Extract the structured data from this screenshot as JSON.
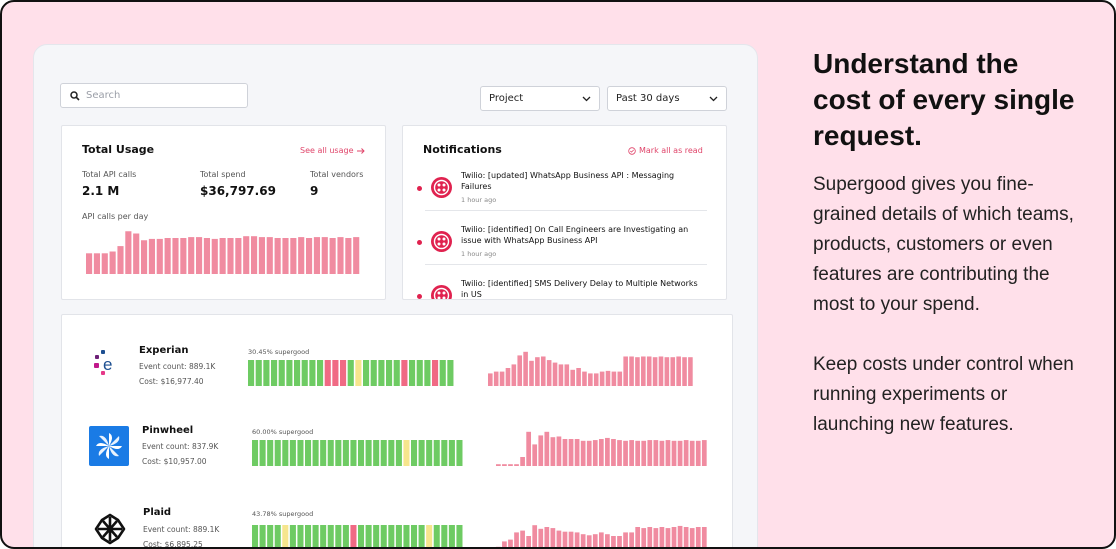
{
  "search": {
    "placeholder": "Search"
  },
  "filters": {
    "project": "Project",
    "range": "Past 30 days"
  },
  "usage": {
    "title": "Total Usage",
    "link": "See all usage",
    "api_calls_label": "Total API calls",
    "api_calls_value": "2.1 M",
    "spend_label": "Total spend",
    "spend_value": "$36,797.69",
    "vendors_label": "Total vendors",
    "vendors_value": "9",
    "chart_label": "API calls per day",
    "bar_color": "#f08ba0",
    "daily_levels": [
      0.46,
      0.46,
      0.46,
      0.5,
      0.62,
      0.95,
      0.9,
      0.75,
      0.78,
      0.78,
      0.8,
      0.8,
      0.8,
      0.82,
      0.82,
      0.8,
      0.78,
      0.8,
      0.8,
      0.8,
      0.84,
      0.84,
      0.82,
      0.82,
      0.8,
      0.8,
      0.8,
      0.82,
      0.8,
      0.82,
      0.82,
      0.8,
      0.82,
      0.8,
      0.82
    ]
  },
  "notifications": {
    "title": "Notifications",
    "mark_read": "Mark all as read",
    "items": [
      {
        "text": "Twilio: [updated] WhatsApp Business API : Messaging Failures",
        "time": "1 hour ago"
      },
      {
        "text": "Twilio: [identified] On Call Engineers are Investigating an issue with WhatsApp Business API",
        "time": "1 hour ago"
      },
      {
        "text": "Twilio: [identified] SMS Delivery Delay to Multiple Networks in US",
        "time": ""
      }
    ]
  },
  "vendors": [
    {
      "name": "Experian",
      "event_count": "Event count: 889.1K",
      "cost": "Cost: $16,977.40",
      "pct": "30.45% supergood",
      "strip": "ggggggggggrrrgygggggrgggrgg",
      "trend": [
        0.35,
        0.4,
        0.4,
        0.5,
        0.6,
        0.85,
        0.95,
        0.7,
        0.8,
        0.82,
        0.72,
        0.65,
        0.6,
        0.6,
        0.45,
        0.5,
        0.4,
        0.35,
        0.35,
        0.4,
        0.42,
        0.4,
        0.4,
        0.82,
        0.82,
        0.8,
        0.82,
        0.82,
        0.8,
        0.82,
        0.8,
        0.8,
        0.82,
        0.8,
        0.8
      ]
    },
    {
      "name": "Pinwheel",
      "event_count": "Event count: 837.9K",
      "cost": "Cost: $10,957.00",
      "pct": "60.00% supergood",
      "strip": "ggggggggggggggggggggyggggggg",
      "trend": [
        0.05,
        0.05,
        0.05,
        0.05,
        0.25,
        0.95,
        0.6,
        0.85,
        0.95,
        0.8,
        0.82,
        0.75,
        0.75,
        0.75,
        0.7,
        0.7,
        0.72,
        0.75,
        0.78,
        0.75,
        0.72,
        0.7,
        0.72,
        0.7,
        0.7,
        0.72,
        0.72,
        0.7,
        0.72,
        0.7,
        0.7,
        0.72,
        0.7,
        0.7,
        0.72
      ]
    },
    {
      "name": "Plaid",
      "event_count": "Event count: 889.1K",
      "cost": "Cost: $6,895.25",
      "pct": "43.78% supergood",
      "strip": "ggggyggggggggrgggggggggygggg",
      "trend": [
        0.2,
        0.35,
        0.4,
        0.6,
        0.65,
        0.5,
        0.8,
        0.7,
        0.75,
        0.72,
        0.65,
        0.62,
        0.62,
        0.6,
        0.55,
        0.52,
        0.55,
        0.6,
        0.55,
        0.5,
        0.5,
        0.6,
        0.6,
        0.75,
        0.72,
        0.75,
        0.72,
        0.75,
        0.72,
        0.75,
        0.78,
        0.75,
        0.72,
        0.75,
        0.75
      ]
    }
  ],
  "colors": {
    "green": "#6ecb63",
    "red": "#f06a84",
    "yellow": "#f6e58d",
    "pink": "#f08ba0",
    "accent": "#e0456a"
  },
  "copy": {
    "headline": "Understand the cost of every single request.",
    "para1": "Supergood gives you fine-grained details of which teams, products, customers or even features are contributing the most to your spend.",
    "para2": "Keep costs under control when running experiments or launching new features."
  }
}
